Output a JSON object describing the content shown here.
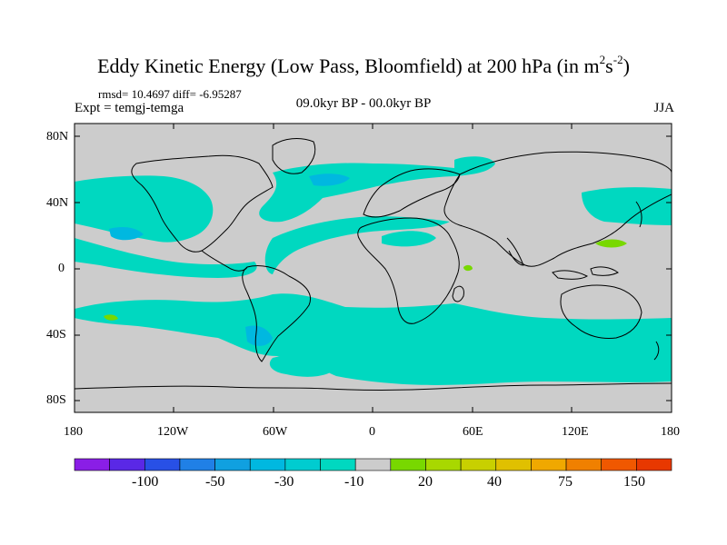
{
  "title": {
    "main": "Eddy Kinetic Energy (Low Pass, Bloomfield) at 200 hPa (in m",
    "sup1": "2",
    "mid": "s",
    "sup2": "-2",
    "end": ")"
  },
  "stats": "rmsd= 10.4697 diff= -6.95287",
  "expt": "Expt = temgj-temga",
  "period": "09.0kyr BP - 00.0kyr BP",
  "season": "JJA",
  "map": {
    "lat_ticks": [
      "80N",
      "40N",
      "0",
      "40S",
      "80S"
    ],
    "lon_ticks": [
      "180",
      "120W",
      "60W",
      "0",
      "60E",
      "120E",
      "180"
    ],
    "colors": {
      "background": "#cccccc",
      "neg10": "#00d8c0",
      "neg30": "#00b8e0",
      "pos20": "#78d800",
      "coast": "#000000"
    }
  },
  "colorbar": {
    "colors": [
      "#8a1ee6",
      "#5a28e6",
      "#2850e6",
      "#2080e6",
      "#10a0e0",
      "#00b8e0",
      "#00ccd0",
      "#00d8c0",
      "#cccccc",
      "#78d800",
      "#a8d800",
      "#c8d000",
      "#e0c000",
      "#f0a800",
      "#f08000",
      "#f05800",
      "#e83800"
    ],
    "labels": [
      "-100",
      "-50",
      "-30",
      "-10",
      "20",
      "40",
      "75",
      "150"
    ]
  }
}
